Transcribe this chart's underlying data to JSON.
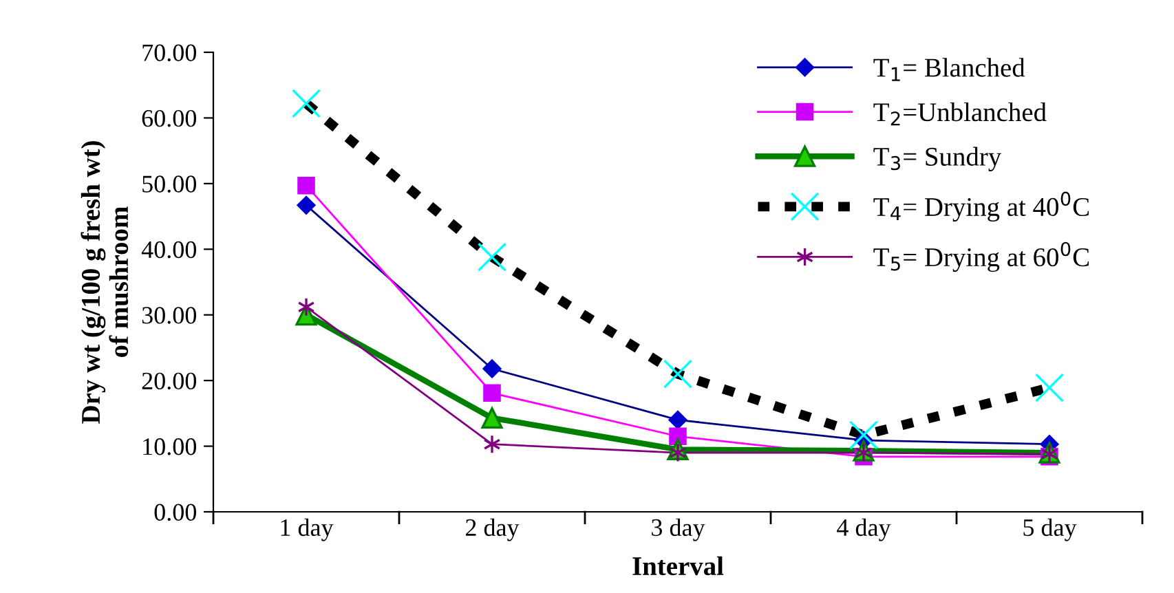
{
  "chart_data": {
    "type": "line",
    "xlabel": "Interval",
    "ylabel": "Dry wt (g/100 g fresh wt)\nof mushroom",
    "categories": [
      "1 day",
      "2 day",
      "3 day",
      "4 day",
      "5 day"
    ],
    "series": [
      {
        "name": "T$_{1}$= Blanched",
        "color": "#000080",
        "colors": [
          "#0000cc",
          "#0000cc",
          "#0000cc",
          "#0000cc",
          "#0000cc"
        ],
        "marker": "diamond",
        "line_style": "solid",
        "values": [
          46.7,
          21.8,
          14.0,
          10.9,
          10.3
        ]
      },
      {
        "name": "T$_{2}$=Unblanched",
        "color": "#ff00ff",
        "colors": [
          "#cc00ff",
          "#cc00ff",
          "#cc00ff",
          "#cc00ff",
          "#cc00ff"
        ],
        "marker": "square",
        "line_style": "solid",
        "values": [
          49.7,
          18.1,
          11.5,
          8.4,
          8.4
        ]
      },
      {
        "name": "T$_{3}$= Sundry",
        "color": "#008000",
        "colors": [
          "#22cc00",
          "#22cc00",
          "#22cc00",
          "#22cc00",
          "#22cc00"
        ],
        "marker": "triangle",
        "line_style": "solid",
        "values": [
          30.0,
          14.3,
          9.5,
          9.3,
          9.0
        ]
      },
      {
        "name": "T$_{4}$= Drying at 40$^{0}$C",
        "color": "#000000",
        "colors": [
          "#00ffff",
          "#00ffff",
          "#00ffff",
          "#00ffff",
          "#00ffff"
        ],
        "marker": "cross",
        "line_style": "dashed",
        "values": [
          62.2,
          38.8,
          21.0,
          11.7,
          18.9
        ]
      },
      {
        "name": "T$_{5}$= Drying at 60$^{0}$C",
        "color": "#800080",
        "colors": [
          "#800080",
          "#800080",
          "#800080",
          "#800080",
          "#800080"
        ],
        "marker": "cross",
        "line_style": "solid",
        "values": [
          31.2,
          10.3,
          9.0,
          9.0,
          8.8
        ]
      }
    ],
    "ylim": [
      0,
      70
    ],
    "yticks": [
      {
        "value": 0,
        "label": "0.00"
      },
      {
        "value": 10,
        "label": "10.00"
      },
      {
        "value": 20,
        "label": "20.00"
      },
      {
        "value": 30,
        "label": "30.00"
      },
      {
        "value": 40,
        "label": "40.00"
      },
      {
        "value": 50,
        "label": "50.00"
      },
      {
        "value": 60,
        "label": "60.00"
      },
      {
        "value": 70,
        "label": "70.00"
      }
    ],
    "grid": false,
    "legend": "top right"
  }
}
